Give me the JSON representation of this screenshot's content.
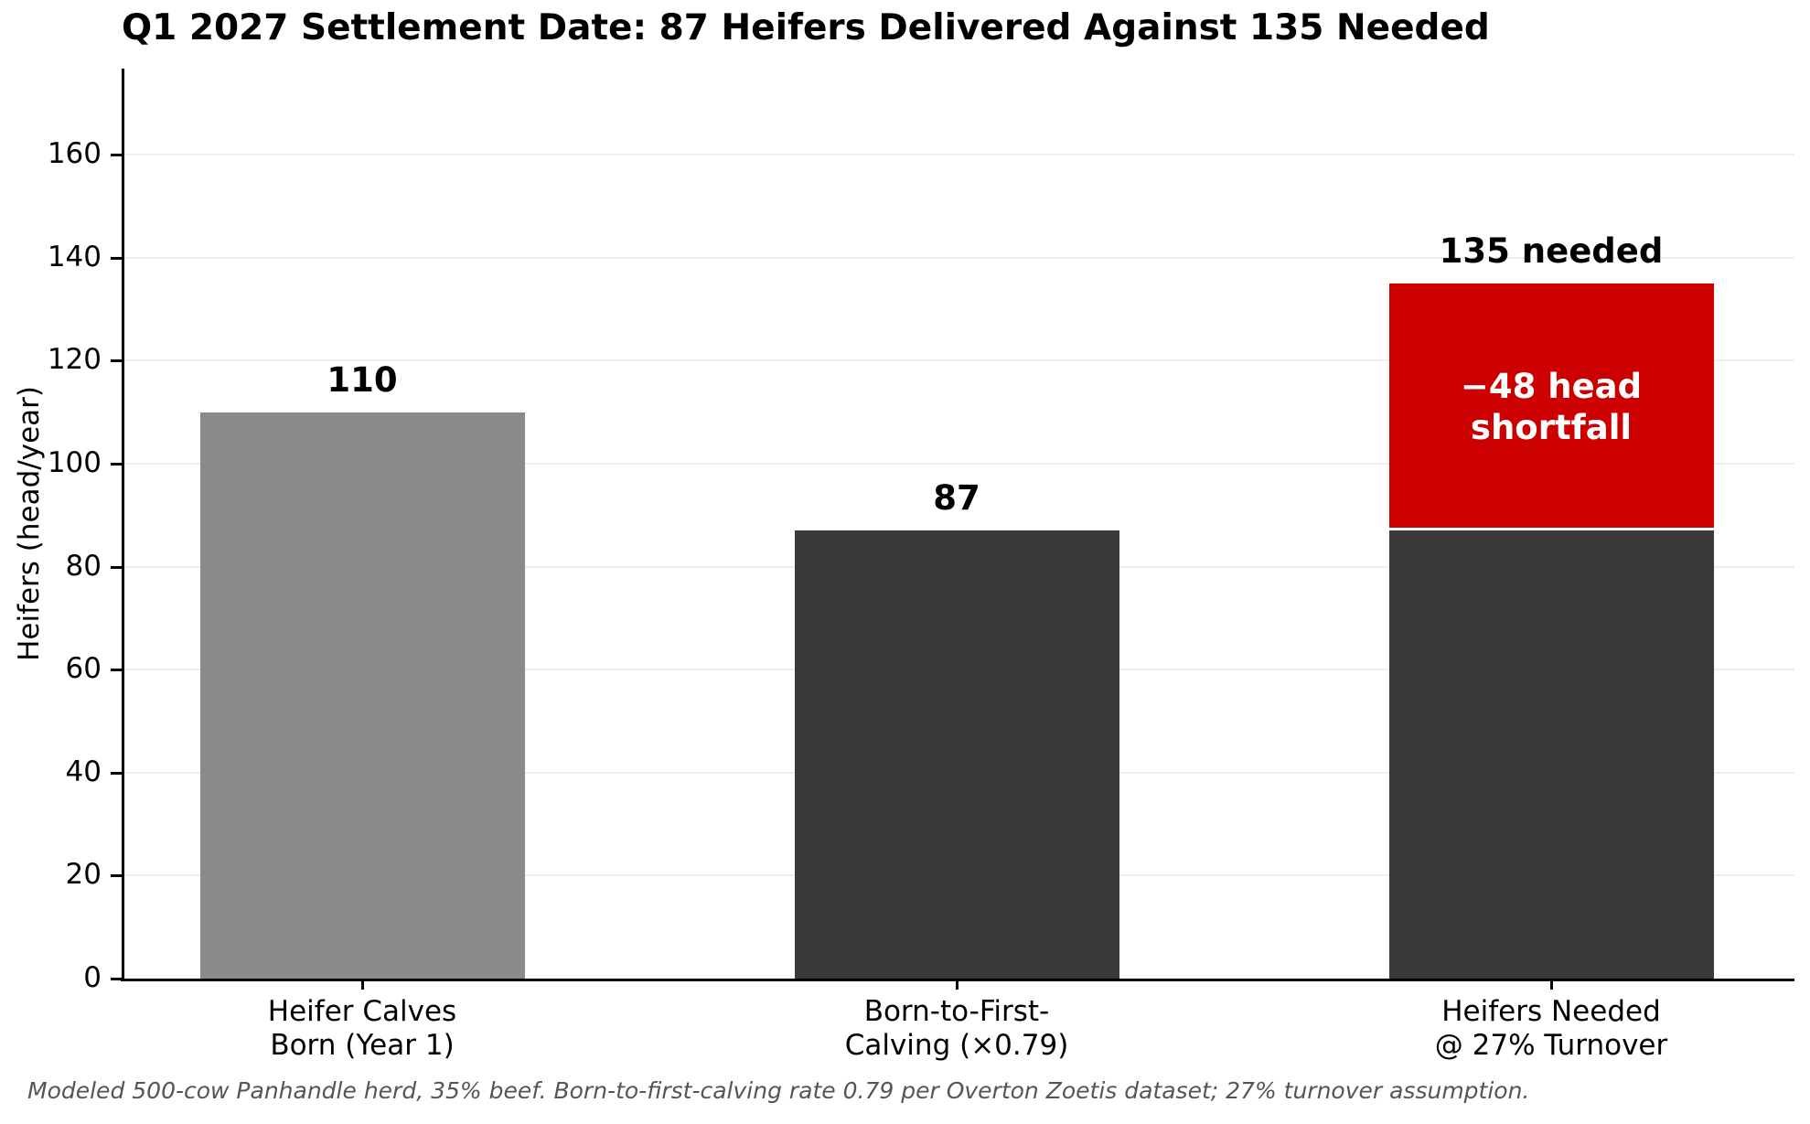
{
  "title": "Q1 2027 Settlement Date: 87 Heifers Delivered Against 135 Needed",
  "footnote": "Modeled 500-cow Panhandle herd, 35% beef. Born-to-first-calving rate 0.79 per Overton Zoetis dataset; 27% turnover assumption.",
  "chart_data": {
    "type": "bar",
    "title": "Q1 2027 Settlement Date: 87 Heifers Delivered Against 135 Needed",
    "xlabel": "",
    "ylabel": "Heifers (head/year)",
    "ylim": [
      0,
      177
    ],
    "yticks": [
      0,
      20,
      40,
      60,
      80,
      100,
      120,
      140,
      160
    ],
    "grid": "horizontal",
    "legend": "none",
    "categories": [
      "Heifer Calves\nBorn (Year 1)",
      "Born-to-First-\nCalving (×0.79)",
      "Heifers Needed\n@ 27% Turnover"
    ],
    "bars": [
      {
        "category_lines": [
          "Heifer Calves",
          "Born (Year 1)"
        ],
        "total": 110,
        "annotation": "110",
        "segments": [
          {
            "value": 110,
            "color": "#8a8a8a"
          }
        ]
      },
      {
        "category_lines": [
          "Born-to-First-",
          "Calving (×0.79)"
        ],
        "total": 87,
        "annotation": "87",
        "segments": [
          {
            "value": 87,
            "color": "#3a3a3a"
          }
        ]
      },
      {
        "category_lines": [
          "Heifers Needed",
          "@ 27% Turnover"
        ],
        "total": 135,
        "annotation": "135 needed",
        "segments": [
          {
            "value": 87,
            "color": "#3a3a3a"
          },
          {
            "value": 48,
            "color": "#cc0000",
            "label_lines": [
              "−48 head",
              "shortfall"
            ],
            "label_color": "#ffffff"
          }
        ]
      }
    ],
    "colors": {
      "bar_gray": "#8a8a8a",
      "bar_dark": "#3a3a3a",
      "bar_red": "#cc0000",
      "grid": "#eeeeee",
      "axis": "#000000",
      "footnote": "#555555",
      "segment_divider": "#ffffff"
    }
  }
}
